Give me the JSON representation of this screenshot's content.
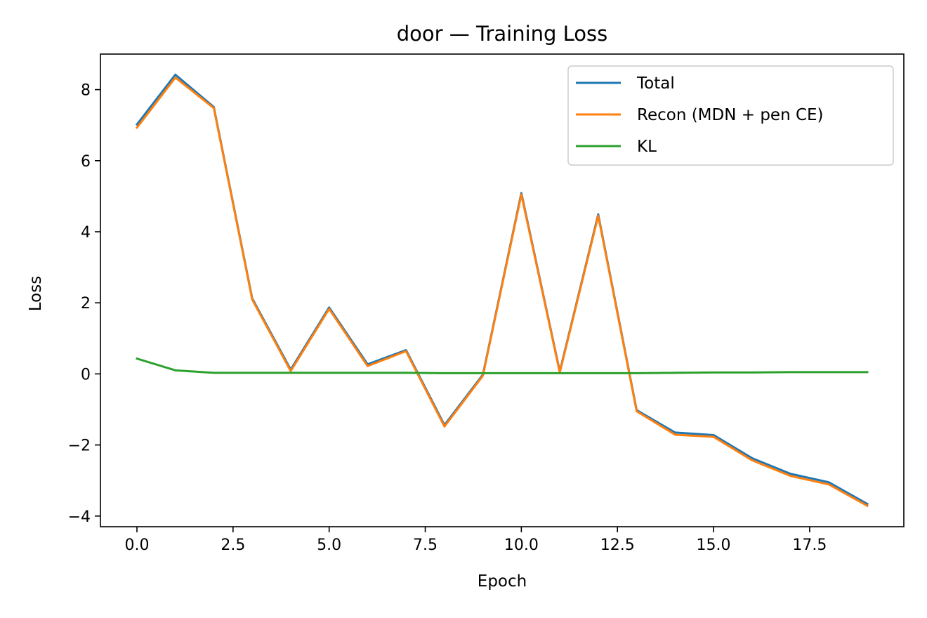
{
  "chart_data": {
    "type": "line",
    "title": "door — Training Loss",
    "xlabel": "Epoch",
    "ylabel": "Loss",
    "xlim": [
      -0.95,
      19.95
    ],
    "ylim": [
      -4.3,
      9.0
    ],
    "xticks": [
      0.0,
      2.5,
      5.0,
      7.5,
      10.0,
      12.5,
      15.0,
      17.5
    ],
    "xtick_labels": [
      "0.0",
      "2.5",
      "5.0",
      "7.5",
      "10.0",
      "12.5",
      "15.0",
      "17.5"
    ],
    "yticks": [
      -4,
      -2,
      0,
      2,
      4,
      6,
      8
    ],
    "ytick_labels": [
      "−4",
      "−2",
      "0",
      "2",
      "4",
      "6",
      "8"
    ],
    "grid": false,
    "legend_position": "top-right",
    "x": [
      0,
      1,
      2,
      3,
      4,
      5,
      6,
      7,
      8,
      9,
      10,
      11,
      12,
      13,
      14,
      15,
      16,
      17,
      18,
      19
    ],
    "series": [
      {
        "name": "Total",
        "color": "#1f77b4",
        "values": [
          7.02,
          8.42,
          7.51,
          2.12,
          0.12,
          1.87,
          0.27,
          0.67,
          -1.44,
          -0.02,
          5.09,
          0.07,
          4.49,
          -1.02,
          -1.65,
          -1.72,
          -2.37,
          -2.81,
          -3.05,
          -3.66
        ]
      },
      {
        "name": "Recon (MDN + pen CE)",
        "color": "#ff7f0e",
        "values": [
          6.93,
          8.34,
          7.48,
          2.09,
          0.08,
          1.83,
          0.22,
          0.64,
          -1.48,
          -0.05,
          5.05,
          0.04,
          4.45,
          -1.05,
          -1.71,
          -1.77,
          -2.43,
          -2.87,
          -3.11,
          -3.71
        ]
      },
      {
        "name": "KL",
        "color": "#2ca02c",
        "values": [
          0.43,
          0.1,
          0.03,
          0.03,
          0.03,
          0.03,
          0.03,
          0.03,
          0.02,
          0.02,
          0.02,
          0.02,
          0.02,
          0.02,
          0.03,
          0.04,
          0.04,
          0.05,
          0.05,
          0.05
        ]
      }
    ]
  }
}
